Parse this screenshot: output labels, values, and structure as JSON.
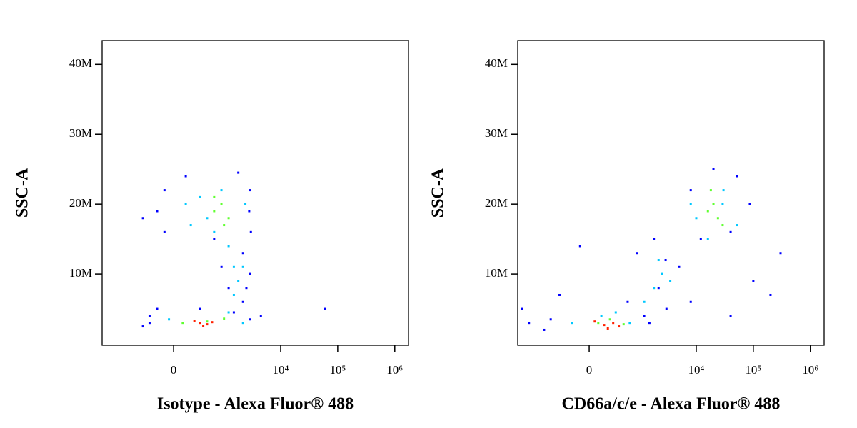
{
  "chart_data": [
    {
      "type": "scatter",
      "x_label": "Isotype - Alexa Fluor® 488",
      "y_label": "SSC-A",
      "xscale": "biexponential",
      "xlim": [
        -2370,
        1740000
      ],
      "ylim": [
        -200000,
        43400000
      ],
      "xticks": [
        0,
        {
          "value": 10000,
          "label": "10⁴"
        },
        {
          "value": 100000,
          "label": "10⁵"
        },
        {
          "value": 1000000,
          "label": "10⁶"
        }
      ],
      "yticks": [
        {
          "value": 10000000,
          "label": "10M"
        },
        {
          "value": 20000000,
          "label": "20M"
        },
        {
          "value": 30000000,
          "label": "30M"
        },
        {
          "value": 40000000,
          "label": "40M"
        }
      ],
      "series": [
        {
          "color": "#0000ff",
          "x": [
            -420,
            -190,
            -300,
            2900,
            2180,
            -190,
            -100,
            136,
            2900,
            2180,
            1210,
            2900,
            657,
            -420,
            3000,
            343,
            4500,
            60000,
            1800,
            -300,
            2500,
            900,
            -100,
            2800,
            1500
          ],
          "values": [
            2500000,
            5000000,
            3000000,
            3500000,
            6000000,
            19000000,
            22000000,
            24000000,
            22000000,
            13000000,
            8000000,
            10000000,
            15000000,
            18000000,
            16000000,
            5000000,
            4000000,
            5000000,
            24500000,
            4000000,
            8000000,
            11000000,
            16000000,
            19000000,
            4500000
          ]
        },
        {
          "color": "#00c8ff",
          "x": [
            136,
            343,
            657,
            1210,
            1500,
            1800,
            2180,
            897,
            479,
            -50,
            1210,
            2180,
            1500,
            2400,
            200
          ],
          "values": [
            20000000,
            21000000,
            16000000,
            14000000,
            11000000,
            9000000,
            11000000,
            22000000,
            18000000,
            3500000,
            4500000,
            3000000,
            7000000,
            20000000,
            17000000
          ]
        },
        {
          "color": "#60ff30",
          "x": [
            657,
            897,
            1210,
            1000,
            479,
            100,
            1000,
            657
          ],
          "values": [
            19000000,
            20000000,
            18000000,
            17000000,
            3200000,
            3000000,
            3600000,
            21000000
          ]
        },
        {
          "color": "#ff2000",
          "x": [
            343,
            479,
            250,
            600,
            400
          ],
          "values": [
            3000000,
            2800000,
            3300000,
            3100000,
            2600000
          ]
        }
      ]
    },
    {
      "type": "scatter",
      "x_label": "CD66a/c/e - Alexa Fluor® 488",
      "y_label": "SSC-A",
      "xscale": "biexponential",
      "xlim": [
        -2370,
        1740000
      ],
      "ylim": [
        -200000,
        43400000
      ],
      "xticks": [
        0,
        {
          "value": 10000,
          "label": "10⁴"
        },
        {
          "value": 100000,
          "label": "10⁵"
        },
        {
          "value": 1000000,
          "label": "10⁶"
        }
      ],
      "yticks": [
        {
          "value": 10000000,
          "label": "10M"
        },
        {
          "value": 20000000,
          "label": "20M"
        },
        {
          "value": 30000000,
          "label": "30M"
        },
        {
          "value": 40000000,
          "label": "40M"
        }
      ],
      "series": [
        {
          "color": "#0000ff",
          "x": [
            -2000,
            -1500,
            -800,
            -400,
            -600,
            1210,
            2180,
            2900,
            1800,
            900,
            5000,
            8000,
            12000,
            40000,
            52000,
            86800,
            20000,
            8000,
            100000,
            200000,
            300000,
            40000,
            3000,
            -100,
            600,
            1500
          ],
          "values": [
            5000000,
            3000000,
            2000000,
            7000000,
            3500000,
            4000000,
            8000000,
            12000000,
            15000000,
            13000000,
            11000000,
            6000000,
            15000000,
            16000000,
            24000000,
            20000000,
            25000000,
            22000000,
            9000000,
            7000000,
            13000000,
            4000000,
            5000000,
            14000000,
            6000000,
            3000000
          ]
        },
        {
          "color": "#00c8ff",
          "x": [
            136,
            343,
            657,
            1210,
            1800,
            2500,
            3500,
            10000,
            30000,
            52000,
            16000,
            -200,
            2180,
            29000,
            8000
          ],
          "values": [
            4000000,
            4500000,
            3000000,
            6000000,
            8000000,
            10000000,
            9000000,
            18000000,
            22000000,
            17000000,
            15000000,
            3000000,
            12000000,
            20000000,
            20000000
          ]
        },
        {
          "color": "#60ff30",
          "x": [
            16000,
            20000,
            24000,
            18000,
            250,
            500,
            29000,
            100
          ],
          "values": [
            19000000,
            20000000,
            18000000,
            22000000,
            3500000,
            2800000,
            17000000,
            3000000
          ]
        },
        {
          "color": "#ff2000",
          "x": [
            170,
            300,
            60,
            400,
            220
          ],
          "values": [
            2700000,
            3000000,
            3200000,
            2500000,
            2200000
          ]
        }
      ]
    }
  ]
}
